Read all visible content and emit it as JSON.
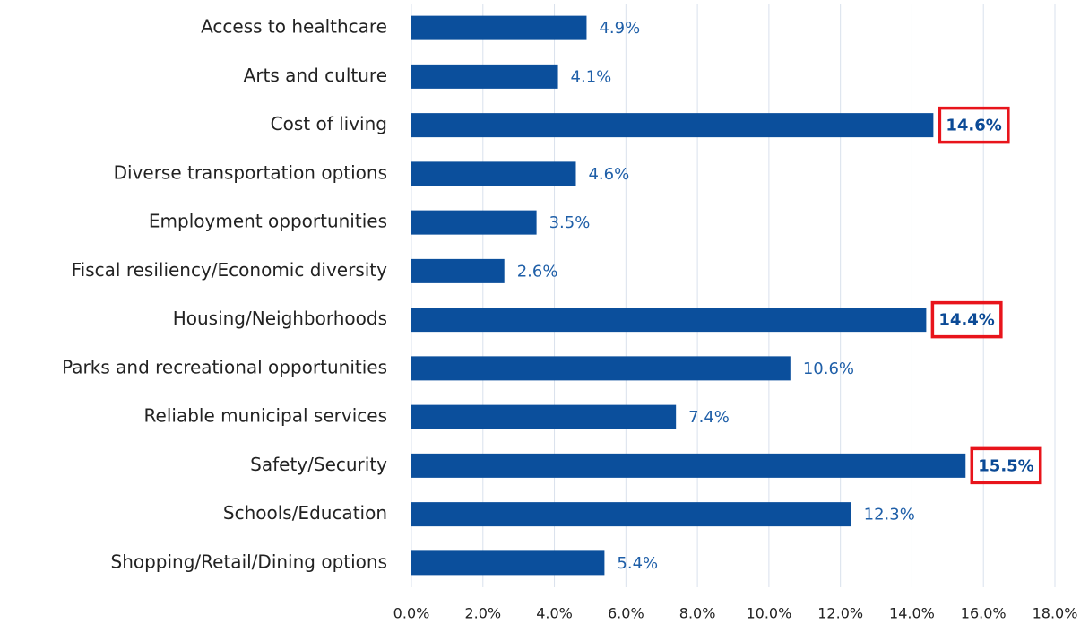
{
  "chart_data": {
    "type": "bar",
    "orientation": "horizontal",
    "categories": [
      "Access to healthcare",
      "Arts and culture",
      "Cost of living",
      "Diverse transportation options",
      "Employment opportunities",
      "Fiscal resiliency/Economic diversity",
      "Housing/Neighborhoods",
      "Parks and recreational opportunities",
      "Reliable municipal services",
      "Safety/Security",
      "Schools/Education",
      "Shopping/Retail/Dining options"
    ],
    "values": [
      4.9,
      4.1,
      14.6,
      4.6,
      3.5,
      2.6,
      14.4,
      10.6,
      7.4,
      15.5,
      12.3,
      5.4
    ],
    "value_labels": [
      "4.9%",
      "4.1%",
      "14.6%",
      "4.6%",
      "3.5%",
      "2.6%",
      "14.4%",
      "10.6%",
      "7.4%",
      "15.5%",
      "12.3%",
      "5.4%"
    ],
    "color": "#0b4f9c",
    "highlight": [
      2,
      6,
      9
    ],
    "highlight_color": "#e8141b",
    "xlim": [
      0,
      18
    ],
    "xticks": [
      {
        "value": 0,
        "label": "0.0%"
      },
      {
        "value": 2,
        "label": "2.0%"
      },
      {
        "value": 4,
        "label": "4.0%"
      },
      {
        "value": 6,
        "label": "6.0%"
      },
      {
        "value": 8,
        "label": "8.0%"
      },
      {
        "value": 10,
        "label": "10.0%"
      },
      {
        "value": 12,
        "label": "12.0%"
      },
      {
        "value": 14,
        "label": "14.0%"
      },
      {
        "value": 16,
        "label": "16.0%"
      },
      {
        "value": 18,
        "label": "18.0%"
      }
    ],
    "grid": true
  }
}
